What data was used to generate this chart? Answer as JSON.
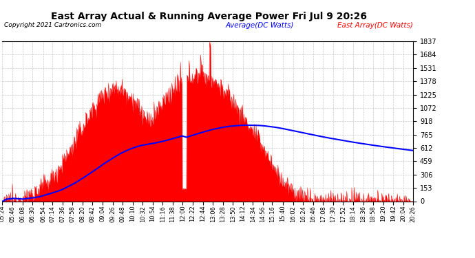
{
  "title": "East Array Actual & Running Average Power Fri Jul 9 20:26",
  "copyright": "Copyright 2021 Cartronics.com",
  "legend_avg": "Average(DC Watts)",
  "legend_east": "East Array(DC Watts)",
  "ymin": 0.0,
  "ymax": 1837.1,
  "yticks": [
    0.0,
    153.1,
    306.2,
    459.3,
    612.4,
    765.4,
    918.5,
    1071.6,
    1224.7,
    1377.8,
    1530.9,
    1684.0,
    1837.1
  ],
  "bg_color": "#ffffff",
  "plot_bg_color": "#ffffff",
  "grid_color": "#bbbbbb",
  "bar_color": "#ff0000",
  "avg_color": "#0000ff",
  "title_color": "#000000",
  "copyright_color": "#000000"
}
